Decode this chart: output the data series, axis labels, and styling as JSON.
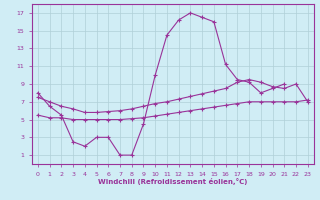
{
  "xlabel": "Windchill (Refroidissement éolien,°C)",
  "bg_color": "#d0edf5",
  "line_color": "#993399",
  "grid_color": "#b0d0d8",
  "xlim": [
    -0.5,
    23.5
  ],
  "ylim": [
    0,
    18
  ],
  "xticks": [
    0,
    1,
    2,
    3,
    4,
    5,
    6,
    7,
    8,
    9,
    10,
    11,
    12,
    13,
    14,
    15,
    16,
    17,
    18,
    19,
    20,
    21,
    22,
    23
  ],
  "yticks": [
    1,
    3,
    5,
    7,
    9,
    11,
    13,
    15,
    17
  ],
  "line1_x": [
    0,
    1,
    2,
    3,
    4,
    5,
    6,
    7,
    8,
    9,
    10,
    11,
    12,
    13,
    14,
    15,
    16,
    17,
    18,
    19,
    20,
    21
  ],
  "line1_y": [
    8.0,
    6.5,
    5.5,
    2.5,
    2.0,
    3.0,
    3.0,
    1.0,
    1.0,
    4.5,
    10.0,
    14.5,
    16.2,
    17.0,
    16.5,
    16.0,
    11.2,
    9.5,
    9.2,
    8.0,
    8.5,
    9.0
  ],
  "line2_x": [
    0,
    1,
    2,
    3,
    4,
    5,
    6,
    7,
    8,
    9,
    10,
    11,
    12,
    13,
    14,
    15,
    16,
    17,
    18,
    19,
    20,
    21,
    22,
    23
  ],
  "line2_y": [
    7.5,
    7.0,
    6.5,
    6.2,
    5.8,
    5.8,
    5.9,
    6.0,
    6.2,
    6.5,
    6.8,
    7.0,
    7.3,
    7.6,
    7.9,
    8.2,
    8.5,
    9.2,
    9.5,
    9.2,
    8.7,
    8.5,
    9.0,
    7.0
  ],
  "line3_x": [
    0,
    1,
    2,
    3,
    4,
    5,
    6,
    7,
    8,
    9,
    10,
    11,
    12,
    13,
    14,
    15,
    16,
    17,
    18,
    19,
    20,
    21,
    22,
    23
  ],
  "line3_y": [
    5.5,
    5.2,
    5.2,
    5.0,
    5.0,
    5.0,
    5.0,
    5.0,
    5.1,
    5.2,
    5.4,
    5.6,
    5.8,
    6.0,
    6.2,
    6.4,
    6.6,
    6.8,
    7.0,
    7.0,
    7.0,
    7.0,
    7.0,
    7.2
  ]
}
